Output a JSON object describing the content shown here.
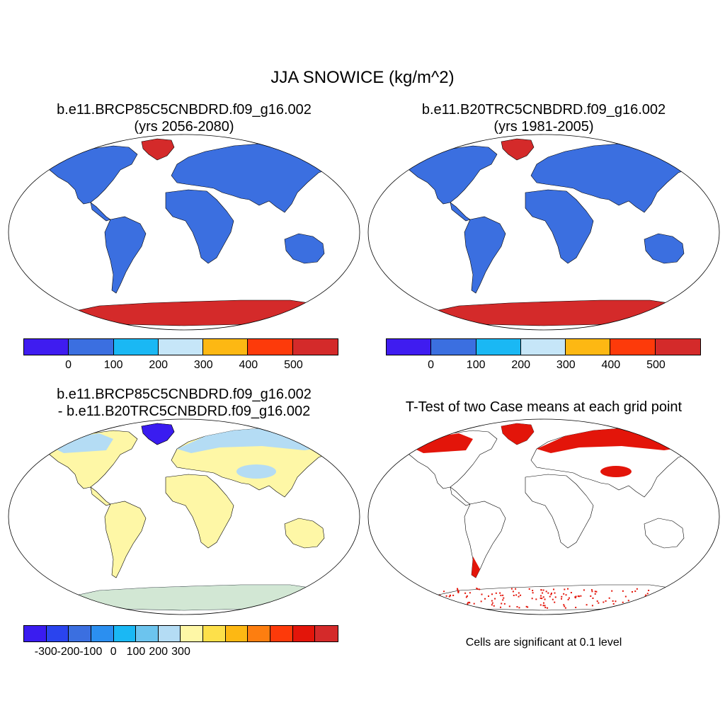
{
  "title": "JJA SNOWICE (kg/m^2)",
  "panels": [
    {
      "line1": "b.e11.BRCP85C5CNBDRD.f09_g16.002",
      "line2": "(yrs 2056-2080)"
    },
    {
      "line1": "b.e11.B20TRC5CNBDRD.f09_g16.002",
      "line2": "(yrs 1981-2005)"
    },
    {
      "line1": "b.e11.BRCP85C5CNBDRD.f09_g16.002",
      "line2": "- b.e11.B20TRC5CNBDRD.f09_g16.002"
    },
    {
      "line1": "T-Test of two Case means at each grid point"
    }
  ],
  "colorbars": {
    "abs": {
      "colors": [
        "#3f1cf0",
        "#3b6fe0",
        "#1ab8f4",
        "#c6e6f8",
        "#fdb813",
        "#fd3a0a",
        "#d42a2a"
      ],
      "ticks": [
        "0",
        "100",
        "200",
        "300",
        "400",
        "500"
      ]
    },
    "diff": {
      "colors": [
        "#3a1cf0",
        "#2a44ee",
        "#3b6fe0",
        "#2b8ff0",
        "#1ab8f4",
        "#6cc4ee",
        "#b4dcf4",
        "#fef7a6",
        "#fde04a",
        "#fdb813",
        "#fd7e10",
        "#fd3a0a",
        "#e3150a",
        "#d42a2a"
      ],
      "ticks": [
        "-300",
        "-200",
        "-100",
        "0",
        "100",
        "200",
        "300"
      ]
    }
  },
  "map_fills": {
    "land_abs": "#3b6fe0",
    "ice_abs": "#d42a2a",
    "land_diff": "#fef7a6",
    "snow_diff": "#b4dcf4",
    "loss_diff": "#3a1cf0",
    "sig": "#e3150a"
  },
  "significance_note": "Cells are significant at 0.1 level"
}
